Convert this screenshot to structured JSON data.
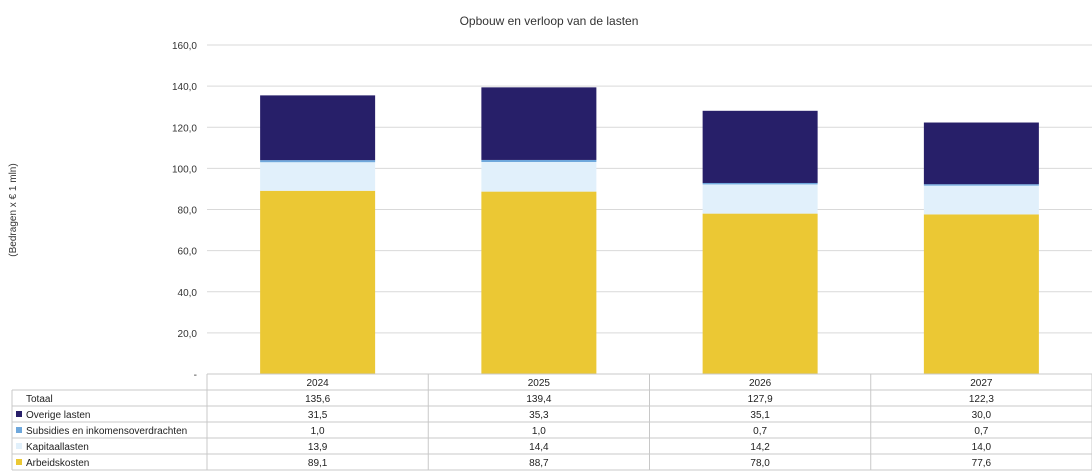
{
  "chart_data": {
    "type": "bar",
    "stacked": true,
    "title": "Opbouw en verloop van de lasten",
    "ylabel": "(Bedragen x € 1 mln)",
    "xlabel": "",
    "ylim": [
      0,
      160
    ],
    "ytick_step": 20,
    "ytick_labels": [
      "-",
      "20,0",
      "40,0",
      "60,0",
      "80,0",
      "100,0",
      "120,0",
      "140,0",
      "160,0"
    ],
    "grid": true,
    "categories": [
      "2024",
      "2025",
      "2026",
      "2027"
    ],
    "series": [
      {
        "name": "Arbeidskosten",
        "values": [
          89.1,
          88.7,
          78.0,
          77.6
        ],
        "labels": [
          "89,1",
          "88,7",
          "78,0",
          "77,6"
        ],
        "color": "#EBC834"
      },
      {
        "name": "Kapitaallasten",
        "values": [
          13.9,
          14.4,
          14.2,
          14.0
        ],
        "labels": [
          "13,9",
          "14,4",
          "14,2",
          "14,0"
        ],
        "color": "#E1F0FB"
      },
      {
        "name": "Subsidies en inkomensoverdrachten",
        "values": [
          1.0,
          1.0,
          0.7,
          0.7
        ],
        "labels": [
          "1,0",
          "1,0",
          "0,7",
          "0,7"
        ],
        "color": "#6FA8DC"
      },
      {
        "name": "Overige lasten",
        "values": [
          31.5,
          35.3,
          35.1,
          30.0
        ],
        "labels": [
          "31,5",
          "35,3",
          "35,1",
          "30,0"
        ],
        "color": "#271F69"
      }
    ],
    "totals": {
      "name": "Totaal",
      "values": [
        135.6,
        139.4,
        127.9,
        122.3
      ],
      "labels": [
        "135,6",
        "139,4",
        "127,9",
        "122,3"
      ]
    },
    "table_row_order": [
      "Totaal",
      "Overige lasten",
      "Subsidies en inkomensoverdrachten",
      "Kapitaallasten",
      "Arbeidskosten"
    ],
    "legend_placement": "data-table"
  }
}
